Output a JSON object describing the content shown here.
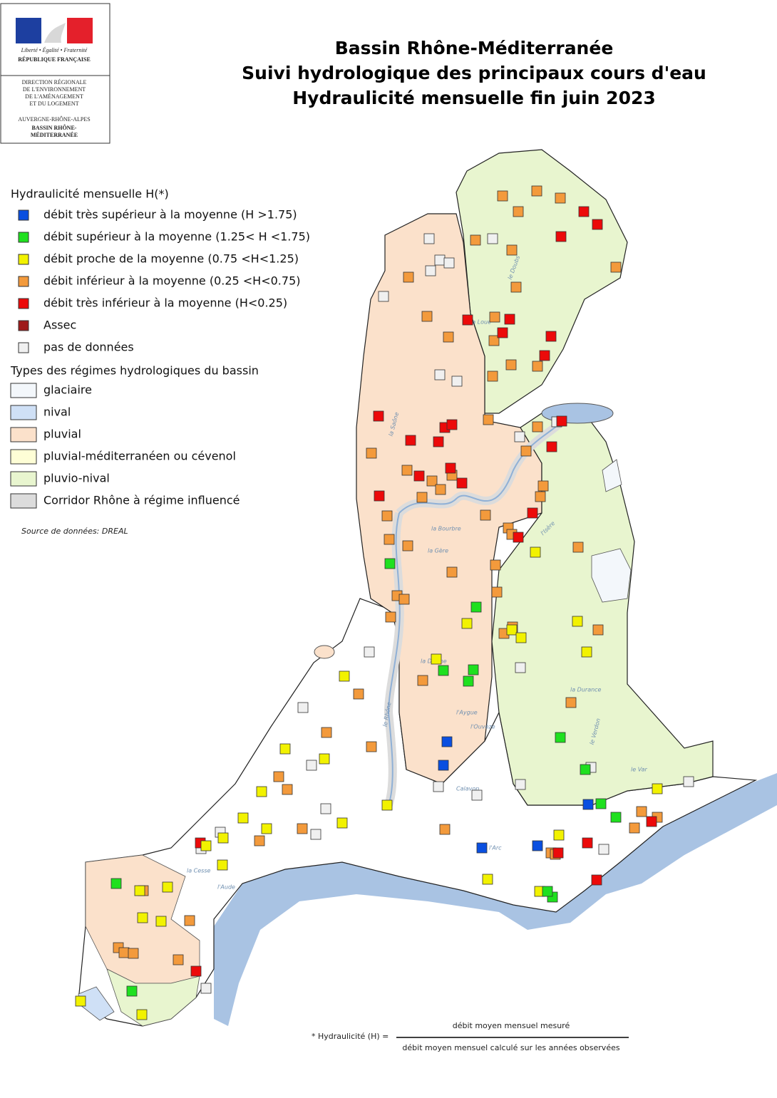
{
  "logo": {
    "motto": "Liberté • Égalité • Fraternité",
    "republic": "RÉPUBLIQUE FRANÇAISE",
    "lines": [
      "DIRECTION RÉGIONALE",
      "DE L'ENVIRONNEMENT",
      "DE L'AMÉNAGEMENT",
      "ET DU LOGEMENT"
    ],
    "region": "AUVERGNE-RHÔNE-ALPES",
    "basin": [
      "BASSIN RHÔNE-",
      "MÉDITERRANÉE"
    ]
  },
  "header": {
    "title_lines": [
      "Bassin Rhône-Méditerranée",
      "Suivi hydrologique des principaux cours d'eau",
      "Hydraulicité mensuelle  fin juin 2023"
    ]
  },
  "legend": {
    "hydraulicity": {
      "title": "Hydraulicité mensuelle H(*)",
      "items": [
        {
          "label": "débit très supérieur à la moyenne (H >1.75)",
          "color": "#0a4fe0"
        },
        {
          "label": "débit  supérieur à la moyenne (1.25< H <1.75)",
          "color": "#1fe01f"
        },
        {
          "label": "débit  proche de la moyenne (0.75 <H<1.25)",
          "color": "#f2f200"
        },
        {
          "label": "débit  inférieur à la moyenne (0.25 <H<0.75)",
          "color": "#f39a3c"
        },
        {
          "label": "débit  très inférieur à la moyenne (H<0.25)",
          "color": "#ec0a0a"
        },
        {
          "label": "Assec",
          "color": "#9e1a1a"
        },
        {
          "label": "pas de données",
          "color": "#f0f0f0"
        }
      ]
    },
    "regimes": {
      "title": "Types des régimes hydrologiques du bassin",
      "items": [
        {
          "label": "glaciaire",
          "color": "#f3f7fb"
        },
        {
          "label": "nival",
          "color": "#cfe0f6"
        },
        {
          "label": "pluvial",
          "color": "#fbe1cb"
        },
        {
          "label": "pluvial-méditerranéen ou cévenol",
          "color": "#fefed6"
        },
        {
          "label": "pluvio-nival",
          "color": "#e8f5cf"
        },
        {
          "label": "Corridor Rhône à régime influencé",
          "color": "#dcdcdc"
        }
      ]
    },
    "source": "Source de données: DREAL"
  },
  "river_labels": [
    "le Doubs",
    "la Loue",
    "la Saône",
    "l'Isère",
    "la Gère",
    "la Bourbre",
    "la Drôme",
    "l'Aygue",
    "l'Ouvèze",
    "le Var",
    "le Verdon",
    "l'Aude",
    "la Cesse",
    "Calavon",
    "l'Arc",
    "la Durance",
    "le Rhône"
  ],
  "formula": {
    "prefix": "* Hydraulicité (H) =",
    "numerator": "débit moyen mensuel mesuré",
    "denominator": "débit moyen mensuel calculé sur les années observées"
  }
}
